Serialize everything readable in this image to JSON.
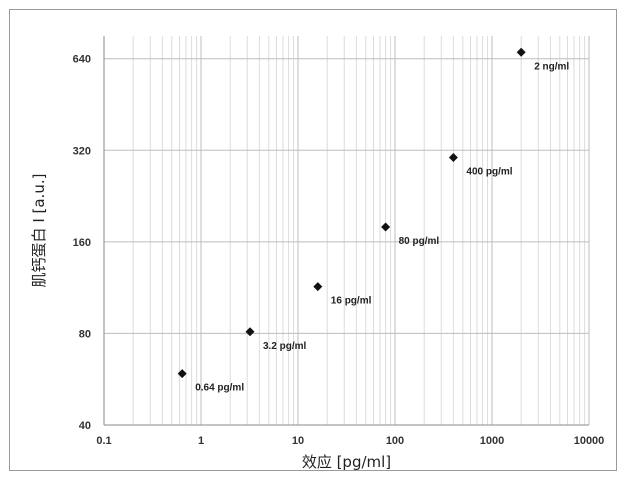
{
  "chart_data": {
    "type": "scatter",
    "title": "",
    "xlabel": "效应 [pg/ml]",
    "ylabel": "肌钙蛋白 I [a.u.]",
    "x_scale": "log",
    "y_scale": "log",
    "xlim": [
      0.1,
      10000
    ],
    "ylim": [
      40,
      760
    ],
    "x_ticks": [
      0.1,
      1,
      10,
      100,
      1000,
      10000
    ],
    "x_tick_labels": [
      "0.1",
      "1",
      "10",
      "100",
      "1000",
      "10000"
    ],
    "y_ticks": [
      40,
      80,
      160,
      320,
      640
    ],
    "y_tick_labels": [
      "40",
      "80",
      "160",
      "320",
      "640"
    ],
    "grid": true,
    "legend": "none",
    "marker": "diamond",
    "marker_color": "#111111",
    "grid_major_color": "#bdbdbd",
    "grid_minor_color": "#dcdcdc",
    "series": [
      {
        "x": [
          0.64,
          3.2,
          16,
          80,
          400,
          2000
        ],
        "y": [
          59,
          81,
          114,
          179,
          303,
          672
        ],
        "labels": [
          "0.64 pg/ml",
          "3.2 pg/ml",
          "16 pg/ml",
          "80 pg/ml",
          "400 pg/ml",
          "2 ng/ml"
        ]
      }
    ]
  }
}
